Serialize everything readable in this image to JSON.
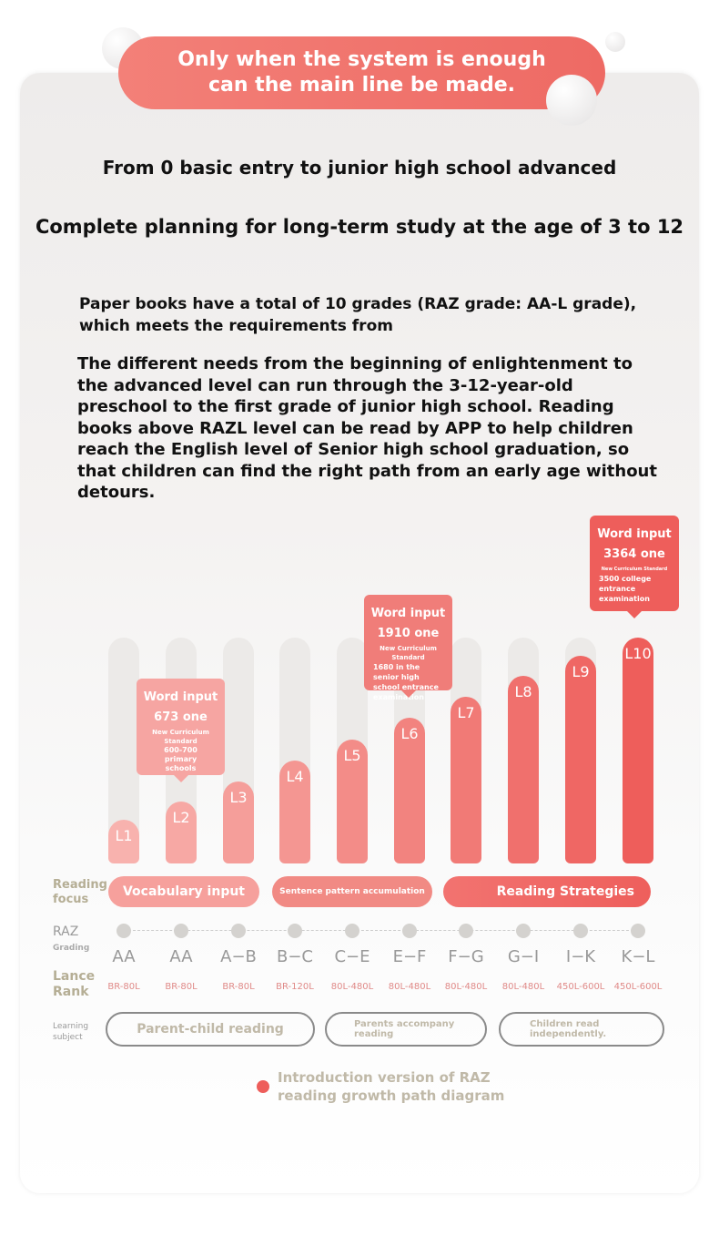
{
  "banner": {
    "line1": "Only when the system is enough",
    "line2": "can the main line be made."
  },
  "heading1": "From 0 basic entry to junior high school advanced",
  "heading2": "Complete planning for long-term study at the age of 3 to 12",
  "paragraph1": "Paper books have a total of 10 grades (RAZ grade: AA-L grade), which meets the requirements from",
  "paragraph2": "The different needs from the beginning of enlightenment to the advanced level can run through the 3-12-year-old preschool to the first grade of junior high school. Reading books above RAZL level can be read by APP to help children reach the English level of Senior high school graduation, so that children can find the right path from an early age without detours.",
  "levels": [
    "L1",
    "L2",
    "L3",
    "L4",
    "L5",
    "L6",
    "L7",
    "L8",
    "L9",
    "L10"
  ],
  "tooltips": [
    {
      "title": "Word input",
      "count": "673 one",
      "standard": "New Curriculum Standard",
      "detail": "600-700 primary schools"
    },
    {
      "title": "Word input",
      "count": "1910 one",
      "standard": "New Curriculum Standard",
      "detail": "1680 in the senior high school entrance examination"
    },
    {
      "title": "Word input",
      "count": "3364 one",
      "standard": "New Curriculum Standard",
      "detail": "3500 college entrance examination"
    }
  ],
  "labels": {
    "reading_focus": "Reading focus",
    "raz": "RAZ",
    "grading": "Grading",
    "lance": "Lance Rank",
    "learning": "Learning subject"
  },
  "focus": [
    "Vocabulary input",
    "Sentence pattern accumulation",
    "Reading Strategies"
  ],
  "grades": [
    "AA",
    "AA",
    "A−B",
    "B−C",
    "C−E",
    "E−F",
    "F−G",
    "G−I",
    "I−K",
    "K−L"
  ],
  "lexile": [
    "BR-80L",
    "BR-80L",
    "BR-80L",
    "BR-120L",
    "80L-480L",
    "80L-480L",
    "80L-480L",
    "80L-480L",
    "450L-600L",
    "450L-600L"
  ],
  "learning": [
    "Parent-child reading",
    "Parents accompany reading",
    "Children read independently."
  ],
  "legend": "Introduction version of RAZ reading growth path diagram"
}
